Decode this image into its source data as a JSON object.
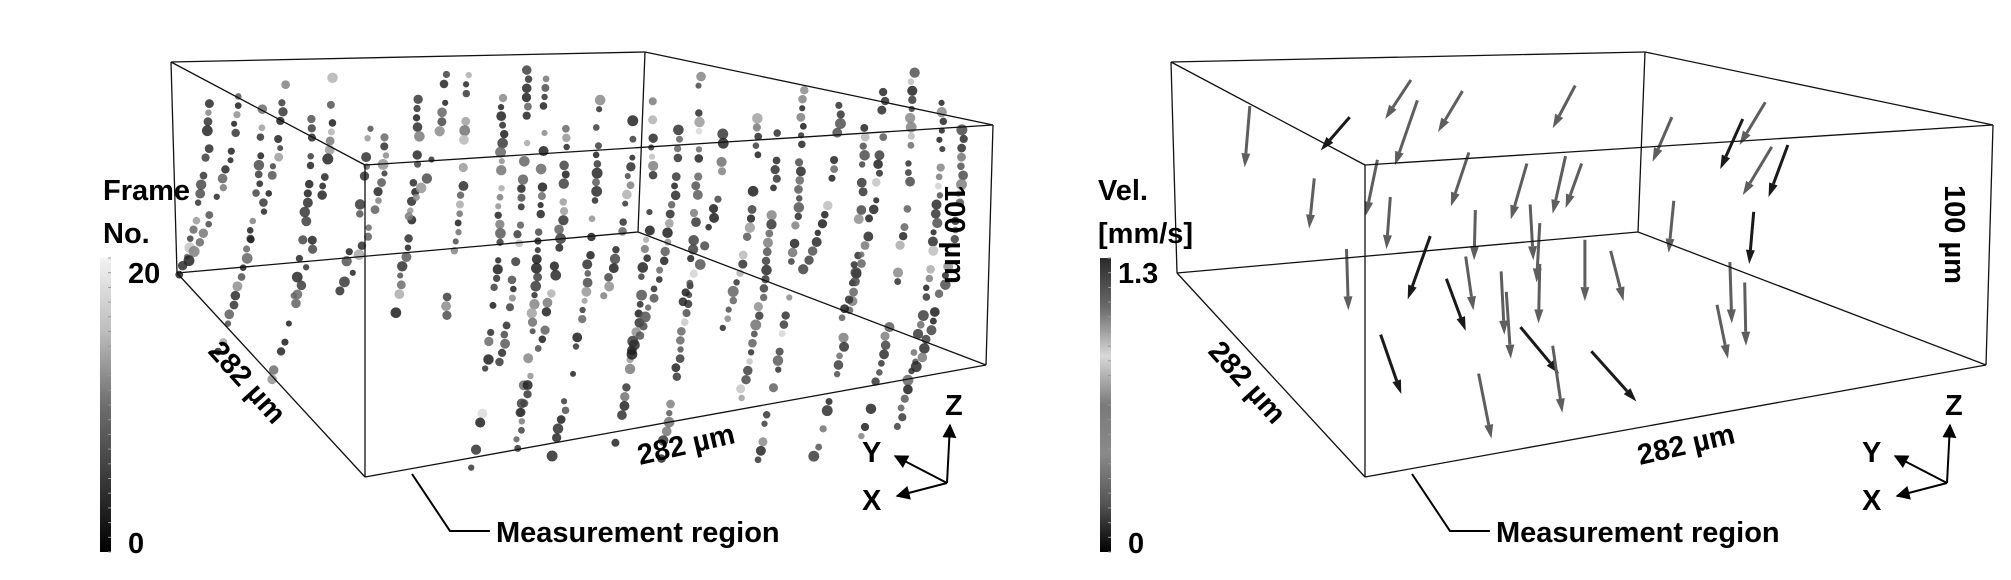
{
  "panels": [
    {
      "id": "frame",
      "colorbar": {
        "title_line1": "Frame",
        "title_line2": "No.",
        "max": "20",
        "min": "0",
        "gradient": [
          "#f2f2f2",
          "#bdbdbd",
          "#6e6e6e",
          "#3a3a3a",
          "#000000"
        ]
      },
      "dim_y": "282 µm",
      "dim_x": "282 µm",
      "dim_z": "100 µm",
      "axes": {
        "z": "Z",
        "y": "Y",
        "x": "X"
      },
      "callout": "Measurement region"
    },
    {
      "id": "velocity",
      "colorbar": {
        "title_line1": "Vel.",
        "title_line2": "[mm/s]",
        "max": "1.3",
        "min": "0",
        "gradient": [
          "#2a2a2a",
          "#6a6a6a",
          "#d8d8d8",
          "#7a7a7a",
          "#8a8a8a",
          "#555555",
          "#000000"
        ]
      },
      "dim_y": "282 µm",
      "dim_x": "282 µm",
      "dim_z": "100 µm",
      "axes": {
        "z": "Z",
        "y": "Y",
        "x": "X"
      },
      "callout": "Measurement region"
    }
  ]
}
